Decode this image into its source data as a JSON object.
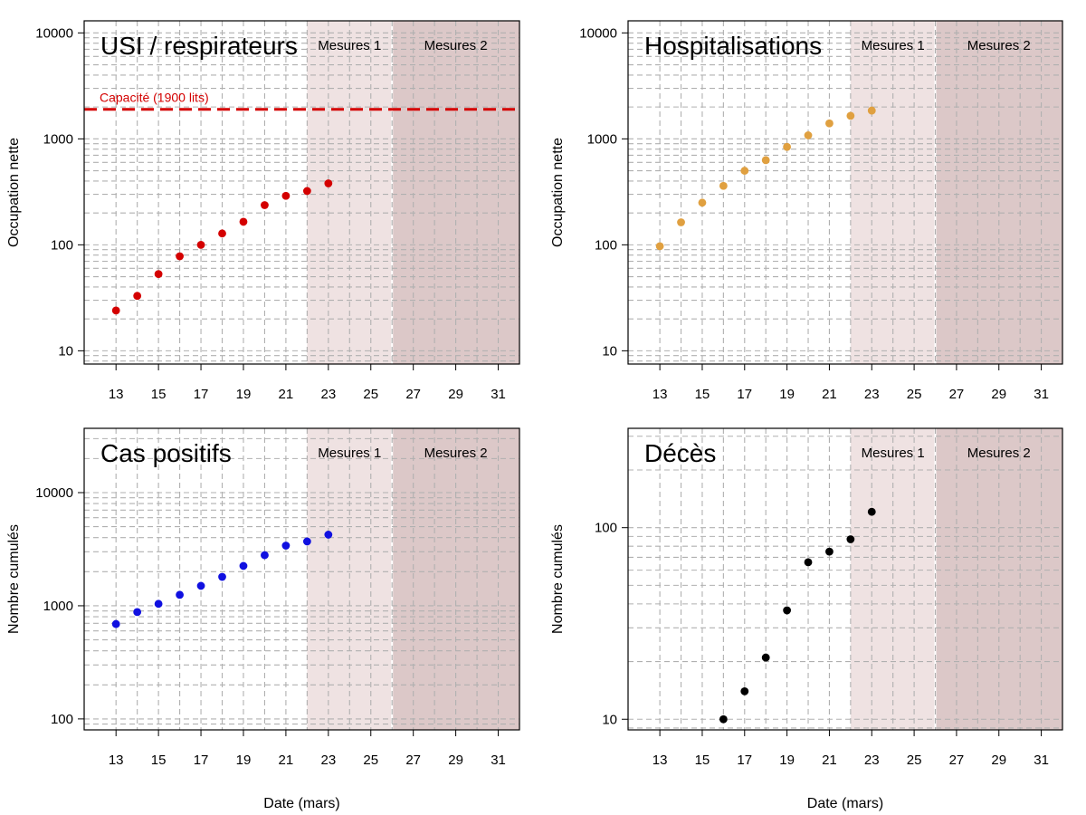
{
  "figure": {
    "xlabel": "Date (mars)"
  },
  "colors": {
    "usi": "#d40000",
    "hosp": "#e0a040",
    "cas": "#1010e0",
    "deces": "#000000",
    "mesures1_band": "#efe2e2",
    "mesures2_band": "#dcc8c8",
    "capacity_line": "#d40000",
    "grid": "#b0b0b0"
  },
  "chart_data": [
    {
      "id": "usi",
      "type": "scatter",
      "title": "USI / respirateurs",
      "ylabel": "Occupation nette",
      "xlabel": "Date (mars)",
      "yscale": "log",
      "ylim": [
        7.5,
        13000
      ],
      "xlim": [
        11.5,
        32
      ],
      "x": [
        13,
        14,
        15,
        16,
        17,
        18,
        19,
        20,
        21,
        22,
        23
      ],
      "values": [
        24,
        33,
        53,
        78,
        100,
        128,
        165,
        237,
        290,
        322,
        380
      ],
      "yticks": [
        10,
        100,
        1000,
        10000
      ],
      "ytick_labels": [
        "10",
        "100",
        "1000",
        "10000"
      ],
      "xticks": [
        13,
        15,
        17,
        19,
        21,
        23,
        25,
        27,
        29,
        31
      ],
      "xtick_labels": [
        "13",
        "15",
        "17",
        "19",
        "21",
        "23",
        "25",
        "27",
        "29",
        "31"
      ],
      "periods": [
        {
          "label": "Mesures 1",
          "from": 22,
          "to": 26
        },
        {
          "label": "Mesures 2",
          "from": 26,
          "to": 32
        }
      ],
      "hline": {
        "value": 1900,
        "label": "Capacité (1900 lits)"
      }
    },
    {
      "id": "hosp",
      "type": "scatter",
      "title": "Hospitalisations",
      "ylabel": "Occupation nette",
      "xlabel": "Date (mars)",
      "yscale": "log",
      "ylim": [
        7.5,
        13000
      ],
      "xlim": [
        11.5,
        32
      ],
      "x": [
        13,
        14,
        15,
        16,
        17,
        18,
        19,
        20,
        21,
        22,
        23
      ],
      "values": [
        97,
        163,
        250,
        360,
        500,
        630,
        840,
        1080,
        1400,
        1650,
        1850
      ],
      "yticks": [
        10,
        100,
        1000,
        10000
      ],
      "ytick_labels": [
        "10",
        "100",
        "1000",
        "10000"
      ],
      "xticks": [
        13,
        15,
        17,
        19,
        21,
        23,
        25,
        27,
        29,
        31
      ],
      "xtick_labels": [
        "13",
        "15",
        "17",
        "19",
        "21",
        "23",
        "25",
        "27",
        "29",
        "31"
      ],
      "periods": [
        {
          "label": "Mesures 1",
          "from": 22,
          "to": 26
        },
        {
          "label": "Mesures 2",
          "from": 26,
          "to": 32
        }
      ]
    },
    {
      "id": "cas",
      "type": "scatter",
      "title": "Cas positifs",
      "ylabel": "Nombre cumulés",
      "xlabel": "Date (mars)",
      "yscale": "log",
      "ylim": [
        80,
        37000
      ],
      "xlim": [
        11.5,
        32
      ],
      "x": [
        13,
        14,
        15,
        16,
        17,
        18,
        19,
        20,
        21,
        22,
        23
      ],
      "values": [
        690,
        880,
        1040,
        1250,
        1500,
        1800,
        2250,
        2800,
        3400,
        3700,
        4250
      ],
      "yticks": [
        100,
        1000,
        10000
      ],
      "ytick_labels": [
        "100",
        "1000",
        "10000"
      ],
      "xticks": [
        13,
        15,
        17,
        19,
        21,
        23,
        25,
        27,
        29,
        31
      ],
      "xtick_labels": [
        "13",
        "15",
        "17",
        "19",
        "21",
        "23",
        "25",
        "27",
        "29",
        "31"
      ],
      "periods": [
        {
          "label": "Mesures 1",
          "from": 22,
          "to": 26
        },
        {
          "label": "Mesures 2",
          "from": 26,
          "to": 32
        }
      ]
    },
    {
      "id": "deces",
      "type": "scatter",
      "title": "Décès",
      "ylabel": "Nombre cumulés",
      "xlabel": "Date (mars)",
      "yscale": "log",
      "ylim": [
        8.8,
        330
      ],
      "xlim": [
        11.5,
        32
      ],
      "x": [
        16,
        17,
        18,
        19,
        20,
        21,
        22,
        23
      ],
      "values": [
        10,
        14,
        21,
        37,
        66,
        75,
        87,
        121
      ],
      "yticks": [
        10,
        100
      ],
      "ytick_labels": [
        "10",
        "100"
      ],
      "xticks": [
        13,
        15,
        17,
        19,
        21,
        23,
        25,
        27,
        29,
        31
      ],
      "xtick_labels": [
        "13",
        "15",
        "17",
        "19",
        "21",
        "23",
        "25",
        "27",
        "29",
        "31"
      ],
      "periods": [
        {
          "label": "Mesures 1",
          "from": 22,
          "to": 26
        },
        {
          "label": "Mesures 2",
          "from": 26,
          "to": 32
        }
      ]
    }
  ]
}
